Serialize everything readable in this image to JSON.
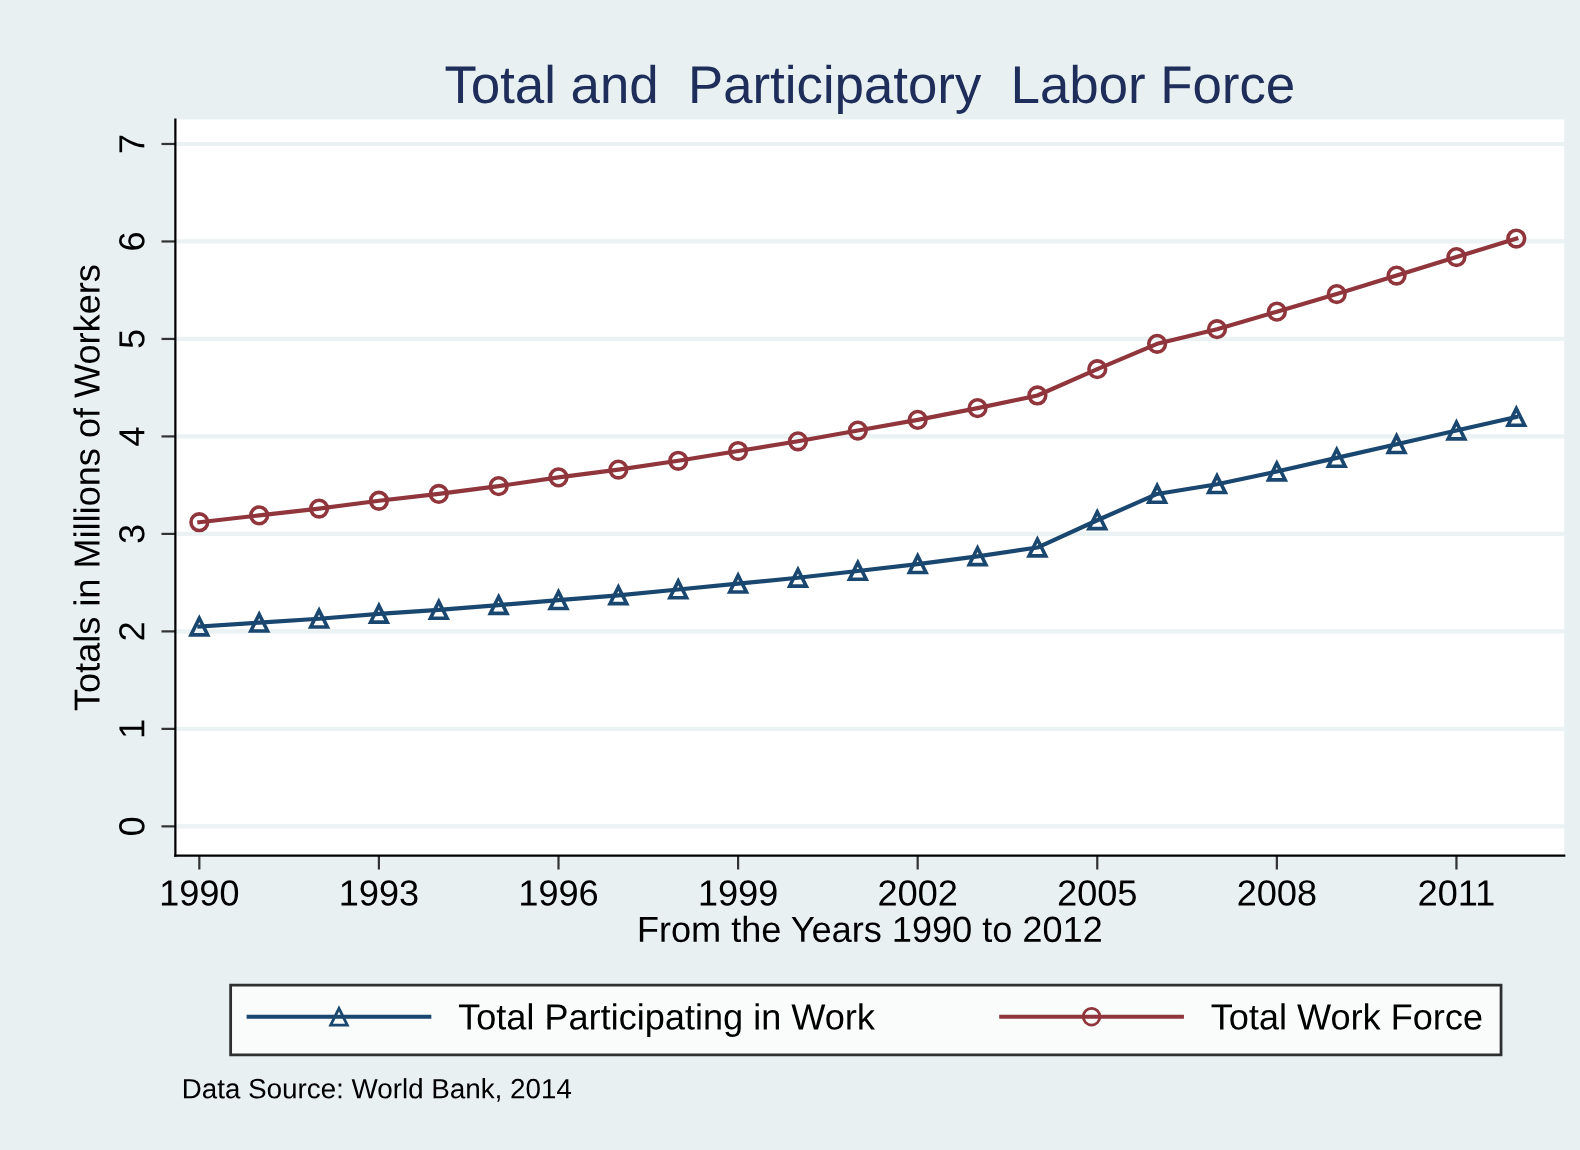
{
  "chart_data": {
    "type": "line",
    "title": "Total and  Participatory  Labor Force",
    "xlabel": "From the Years 1990 to 2012",
    "ylabel": "Totals in Millions of Workers",
    "x": [
      1990,
      1991,
      1992,
      1993,
      1994,
      1995,
      1996,
      1997,
      1998,
      1999,
      2000,
      2001,
      2002,
      2003,
      2004,
      2005,
      2006,
      2007,
      2008,
      2009,
      2010,
      2011,
      2012
    ],
    "series": [
      {
        "name": "Total Participating in Work",
        "color": "#1a476f",
        "marker": "triangle",
        "values": [
          2.05,
          2.09,
          2.13,
          2.18,
          2.22,
          2.27,
          2.32,
          2.37,
          2.43,
          2.49,
          2.55,
          2.62,
          2.69,
          2.77,
          2.86,
          3.14,
          3.41,
          3.51,
          3.64,
          3.78,
          3.92,
          4.06,
          4.2
        ]
      },
      {
        "name": "Total Work Force",
        "color": "#90353b",
        "marker": "circle",
        "values": [
          3.12,
          3.19,
          3.26,
          3.34,
          3.41,
          3.49,
          3.58,
          3.66,
          3.75,
          3.85,
          3.95,
          4.06,
          4.17,
          4.29,
          4.42,
          4.69,
          4.95,
          5.1,
          5.28,
          5.46,
          5.65,
          5.84,
          6.03
        ]
      }
    ],
    "xlim": [
      1989.6,
      2012.8
    ],
    "ylim": [
      -0.3,
      7.25
    ],
    "xticks": [
      1990,
      1993,
      1996,
      1999,
      2002,
      2005,
      2008,
      2011
    ],
    "yticks": [
      0,
      1,
      2,
      3,
      4,
      5,
      6,
      7
    ],
    "grid": "y",
    "legend": "bottom",
    "line_style": "solid",
    "annotations": [
      "Data Source: World Bank, 2014"
    ]
  }
}
